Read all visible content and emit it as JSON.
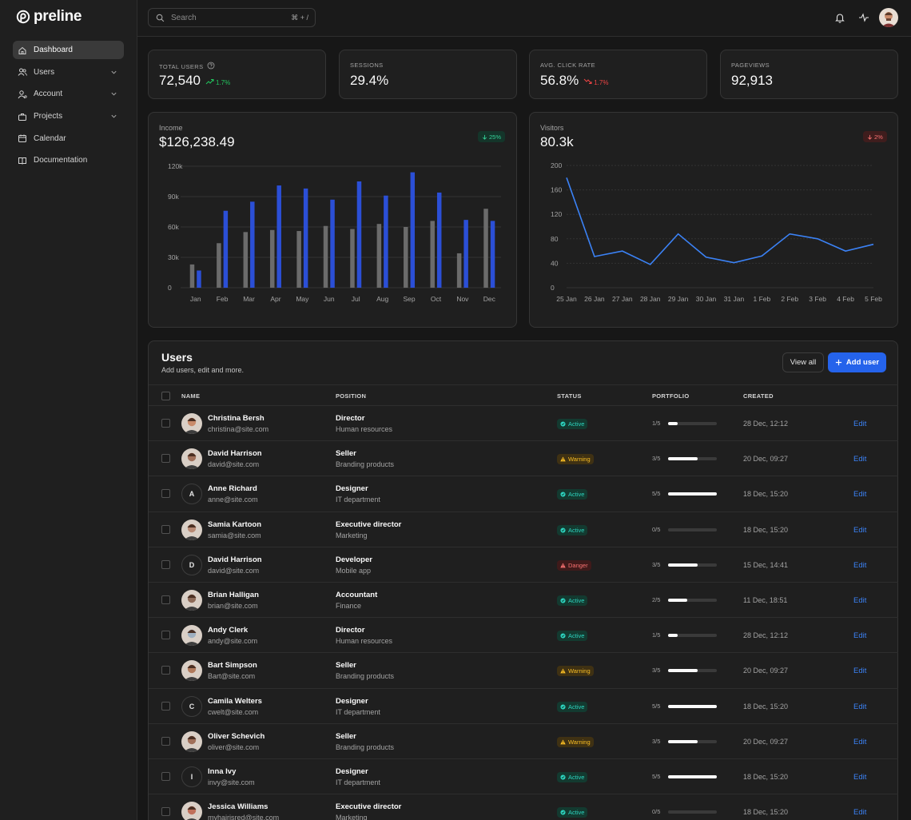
{
  "brand": {
    "name": "preline"
  },
  "sidebar": {
    "items": [
      {
        "label": "Dashboard",
        "icon": "home-icon",
        "active": true
      },
      {
        "label": "Users",
        "icon": "users-icon",
        "chevron": true
      },
      {
        "label": "Account",
        "icon": "account-icon",
        "chevron": true
      },
      {
        "label": "Projects",
        "icon": "briefcase-icon",
        "chevron": true
      },
      {
        "label": "Calendar",
        "icon": "calendar-icon"
      },
      {
        "label": "Documentation",
        "icon": "book-icon"
      }
    ]
  },
  "header": {
    "search_placeholder": "Search",
    "shortcut": "⌘ + /"
  },
  "stats": [
    {
      "label": "Total users",
      "value": "72,540",
      "trend": "1.7%",
      "direction": "up",
      "help": true
    },
    {
      "label": "Sessions",
      "value": "29.4%"
    },
    {
      "label": "Avg. Click Rate",
      "value": "56.8%",
      "trend": "1.7%",
      "direction": "down"
    },
    {
      "label": "Pageviews",
      "value": "92,913"
    }
  ],
  "income": {
    "title": "Income",
    "value": "$126,238.49",
    "badge": "25%"
  },
  "visitors": {
    "title": "Visitors",
    "value": "80.3k",
    "badge": "2%"
  },
  "chart_data": [
    {
      "type": "bar",
      "categories": [
        "Jan",
        "Feb",
        "Mar",
        "Apr",
        "May",
        "Jun",
        "Jul",
        "Aug",
        "Sep",
        "Oct",
        "Nov",
        "Dec"
      ],
      "series": [
        {
          "values": [
            23000,
            44000,
            55000,
            57000,
            56000,
            61000,
            58000,
            63000,
            60000,
            66000,
            34000,
            78000
          ],
          "color": "#6b6b6b"
        },
        {
          "values": [
            17000,
            76000,
            85000,
            101000,
            98000,
            87000,
            105000,
            91000,
            114000,
            94000,
            67000,
            66000
          ],
          "color": "#2b4fd6"
        }
      ],
      "yticks": [
        "0",
        "30k",
        "60k",
        "90k",
        "120k"
      ],
      "ylim": [
        0,
        120000
      ]
    },
    {
      "type": "line",
      "x": [
        "25 Jan",
        "26 Jan",
        "27 Jan",
        "28 Jan",
        "29 Jan",
        "30 Jan",
        "31 Jan",
        "1 Feb",
        "2 Feb",
        "3 Feb",
        "4 Feb",
        "5 Feb"
      ],
      "series": [
        {
          "values": [
            180,
            51,
            60,
            38,
            88,
            50,
            41,
            52,
            88,
            80,
            60,
            71
          ],
          "color": "#3b82f6"
        }
      ],
      "yticks": [
        "0",
        "40",
        "80",
        "120",
        "160",
        "200"
      ],
      "ylim": [
        0,
        200
      ]
    }
  ],
  "users": {
    "title": "Users",
    "subtitle": "Add users, edit and more.",
    "view_all": "View all",
    "add_user": "Add user",
    "columns": {
      "name": "NAME",
      "position": "POSITION",
      "status": "STATUS",
      "portfolio": "PORTFOLIO",
      "created": "CREATED"
    },
    "edit_label": "Edit",
    "rows": [
      {
        "name": "Christina Bersh",
        "email": "christina@site.com",
        "position": "Director",
        "department": "Human resources",
        "status": "Active",
        "portfolio": "1/5",
        "progress": 0.2,
        "created": "28 Dec, 12:12",
        "avatar": "photo",
        "avatar_color": "#c98b6b"
      },
      {
        "name": "David Harrison",
        "email": "david@site.com",
        "position": "Seller",
        "department": "Branding products",
        "status": "Warning",
        "portfolio": "3/5",
        "progress": 0.6,
        "created": "20 Dec, 09:27",
        "avatar": "photo",
        "avatar_color": "#a0705a"
      },
      {
        "name": "Anne Richard",
        "email": "anne@site.com",
        "position": "Designer",
        "department": "IT department",
        "status": "Active",
        "portfolio": "5/5",
        "progress": 1.0,
        "created": "18 Dec, 15:20",
        "avatar": "A"
      },
      {
        "name": "Samia Kartoon",
        "email": "samia@site.com",
        "position": "Executive director",
        "department": "Marketing",
        "status": "Active",
        "portfolio": "0/5",
        "progress": 0.0,
        "created": "18 Dec, 15:20",
        "avatar": "photo",
        "avatar_color": "#b88a74"
      },
      {
        "name": "David Harrison",
        "email": "david@site.com",
        "position": "Developer",
        "department": "Mobile app",
        "status": "Danger",
        "portfolio": "3/5",
        "progress": 0.6,
        "created": "15 Dec, 14:41",
        "avatar": "D"
      },
      {
        "name": "Brian Halligan",
        "email": "brian@site.com",
        "position": "Accountant",
        "department": "Finance",
        "status": "Active",
        "portfolio": "2/5",
        "progress": 0.4,
        "created": "11 Dec, 18:51",
        "avatar": "photo",
        "avatar_color": "#8d6a58"
      },
      {
        "name": "Andy Clerk",
        "email": "andy@site.com",
        "position": "Director",
        "department": "Human resources",
        "status": "Active",
        "portfolio": "1/5",
        "progress": 0.2,
        "created": "28 Dec, 12:12",
        "avatar": "photo",
        "avatar_color": "#9fb0c0"
      },
      {
        "name": "Bart Simpson",
        "email": "Bart@site.com",
        "position": "Seller",
        "department": "Branding products",
        "status": "Warning",
        "portfolio": "3/5",
        "progress": 0.6,
        "created": "20 Dec, 09:27",
        "avatar": "photo",
        "avatar_color": "#b07a5c"
      },
      {
        "name": "Camila Welters",
        "email": "cwelt@site.com",
        "position": "Designer",
        "department": "IT department",
        "status": "Active",
        "portfolio": "5/5",
        "progress": 1.0,
        "created": "18 Dec, 15:20",
        "avatar": "C"
      },
      {
        "name": "Oliver Schevich",
        "email": "oliver@site.com",
        "position": "Seller",
        "department": "Branding products",
        "status": "Warning",
        "portfolio": "3/5",
        "progress": 0.6,
        "created": "20 Dec, 09:27",
        "avatar": "photo",
        "avatar_color": "#a0705a"
      },
      {
        "name": "Inna Ivy",
        "email": "invy@site.com",
        "position": "Designer",
        "department": "IT department",
        "status": "Active",
        "portfolio": "5/5",
        "progress": 1.0,
        "created": "18 Dec, 15:20",
        "avatar": "I"
      },
      {
        "name": "Jessica Williams",
        "email": "myhairisred@site.com",
        "position": "Executive director",
        "department": "Marketing",
        "status": "Active",
        "portfolio": "0/5",
        "progress": 0.0,
        "created": "18 Dec, 15:20",
        "avatar": "photo",
        "avatar_color": "#c0705a"
      }
    ]
  }
}
